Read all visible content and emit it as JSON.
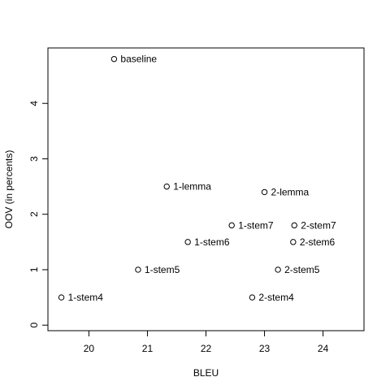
{
  "chart_data": {
    "type": "scatter",
    "title": "",
    "xlabel": "BLEU",
    "ylabel": "OOV (in percents)",
    "xlim": [
      19.3,
      24.7
    ],
    "ylim": [
      -0.1,
      5.0
    ],
    "xticks": [
      20,
      21,
      22,
      23,
      24
    ],
    "yticks": [
      0,
      1,
      2,
      3,
      4
    ],
    "grid": false,
    "marker": "open-circle",
    "points": [
      {
        "label": "baseline",
        "x": 20.43,
        "y": 4.8
      },
      {
        "label": "1-lemma",
        "x": 21.33,
        "y": 2.5
      },
      {
        "label": "2-lemma",
        "x": 23.0,
        "y": 2.4
      },
      {
        "label": "1-stem7",
        "x": 22.44,
        "y": 1.8
      },
      {
        "label": "2-stem7",
        "x": 23.51,
        "y": 1.8
      },
      {
        "label": "1-stem6",
        "x": 21.69,
        "y": 1.5
      },
      {
        "label": "2-stem6",
        "x": 23.49,
        "y": 1.5
      },
      {
        "label": "1-stem5",
        "x": 20.84,
        "y": 1.0
      },
      {
        "label": "2-stem5",
        "x": 23.23,
        "y": 1.0
      },
      {
        "label": "1-stem4",
        "x": 19.53,
        "y": 0.5
      },
      {
        "label": "2-stem4",
        "x": 22.79,
        "y": 0.5
      }
    ]
  },
  "colors": {
    "marker": "#000000",
    "axis": "#000000",
    "background": "#ffffff"
  }
}
